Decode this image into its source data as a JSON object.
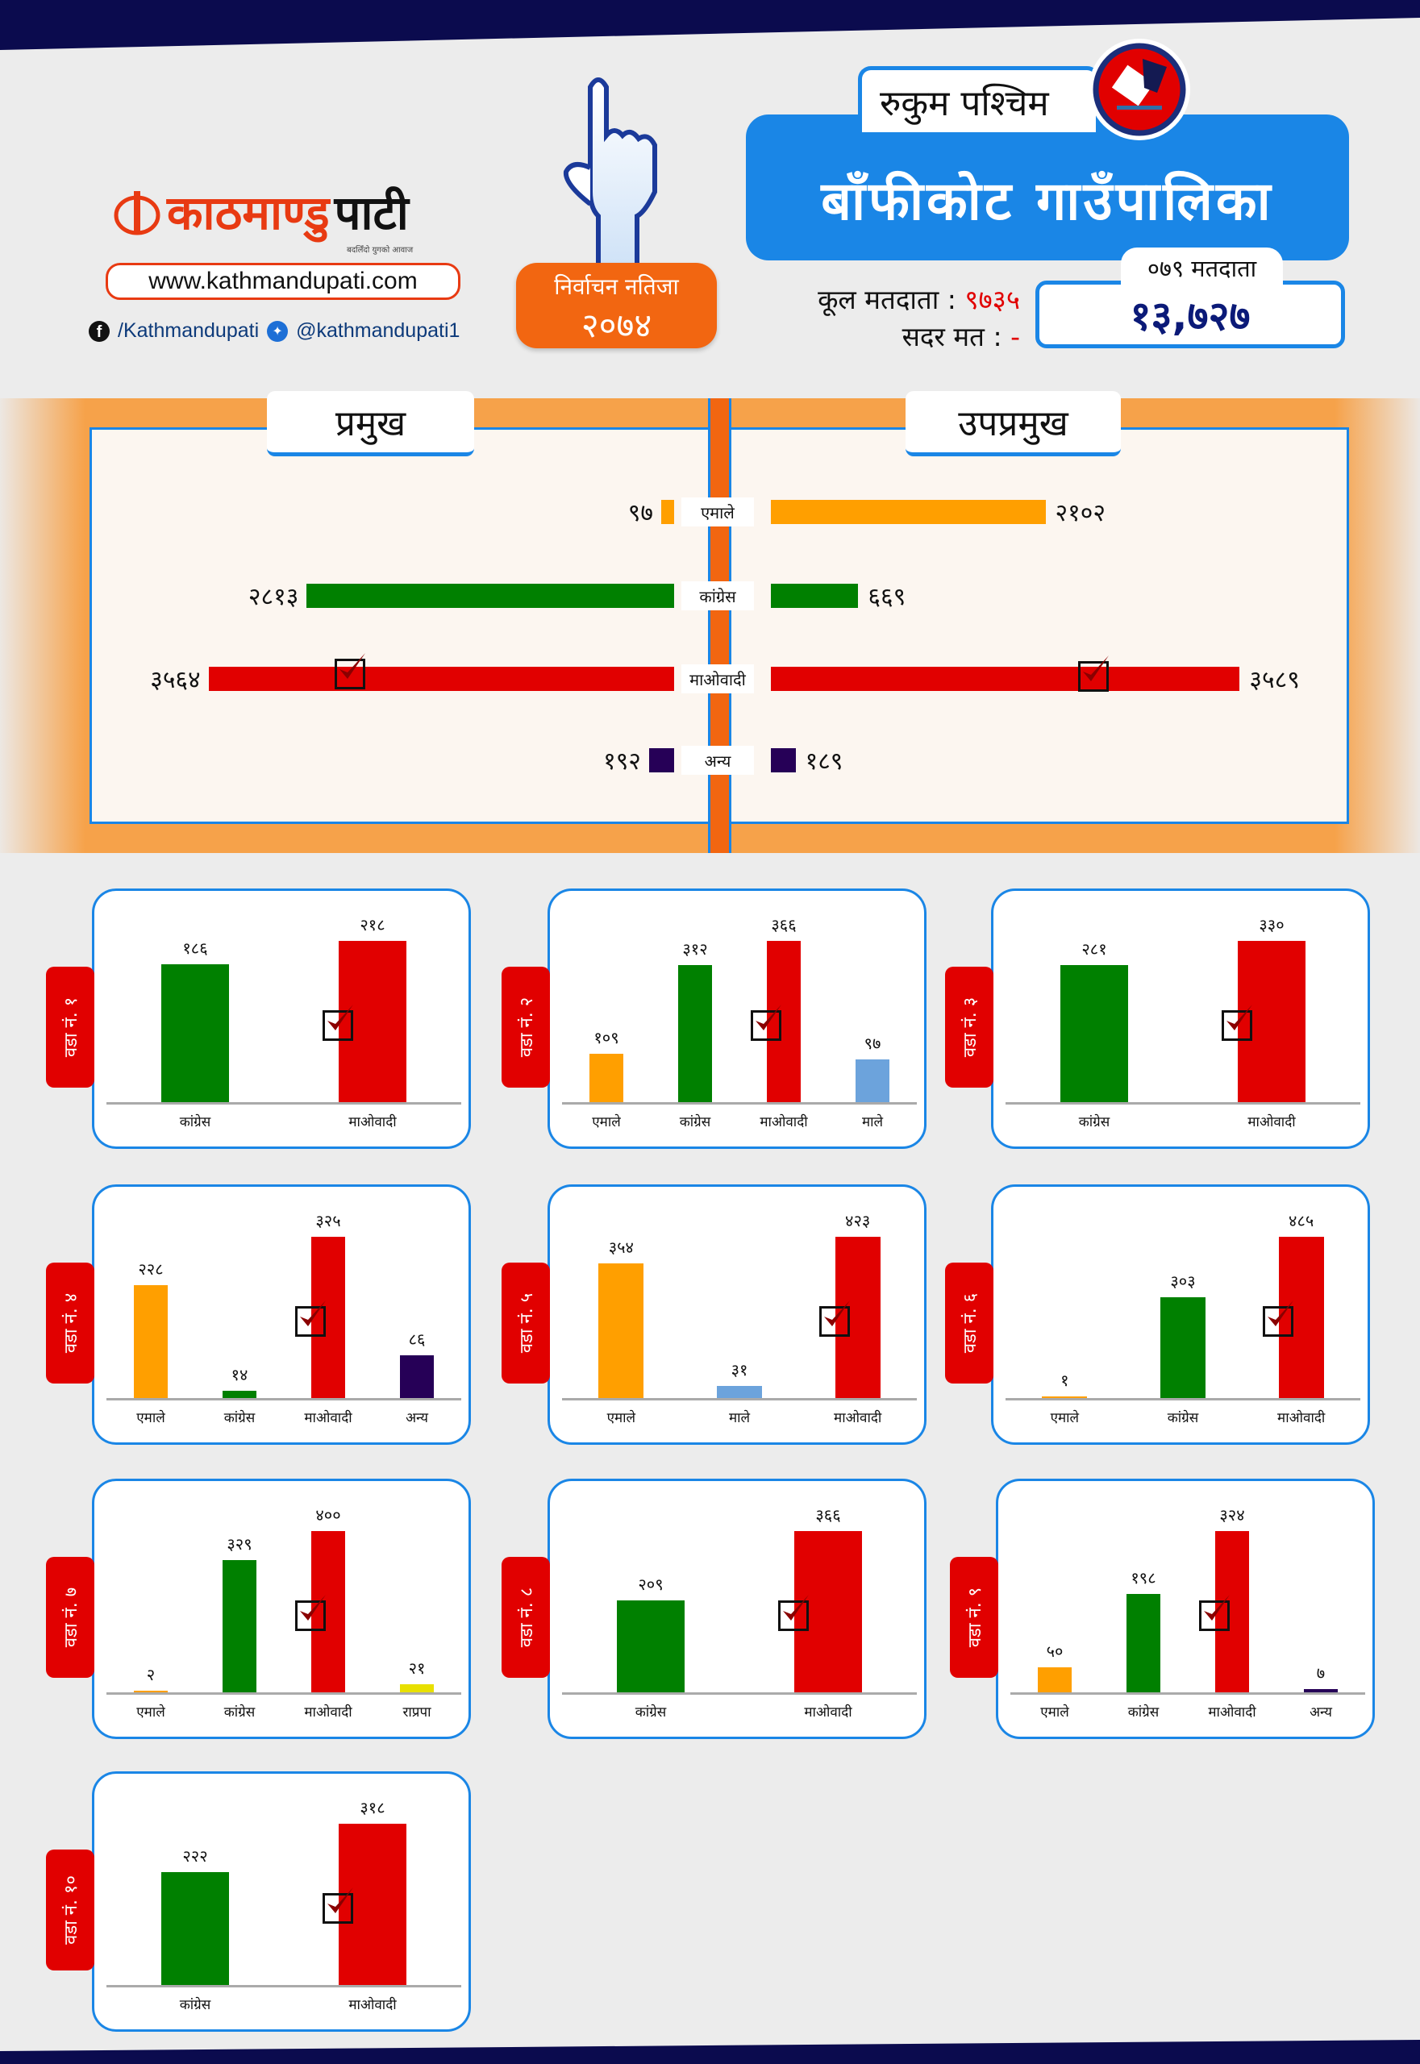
{
  "header": {
    "logo_text_red": "काठमाण्डु",
    "logo_text_black": "पाटी",
    "logo_tagline": "बदलिँदो युगको आवाज",
    "website": "www.kathmandupati.com",
    "facebook": "/Kathmandupati",
    "twitter": "@kathmandupati1",
    "badge_line1": "निर्वाचन नतिजा",
    "badge_line2": "२०७४",
    "district": "रुकुम पश्चिम",
    "municipality": "बाँफीकोट गाउँपालिका",
    "total_voters_label": "कूल मतदाता :",
    "total_voters_value": "९७३५",
    "valid_votes_label": "सदर मत :",
    "valid_votes_value": "-",
    "voters_079_label": "०७९ मतदाता",
    "voters_079_value": "१३,७२७"
  },
  "colors": {
    "एमाले": "#ff9f00",
    "कांग्रेस": "#008000",
    "माओवादी": "#e10000",
    "माले": "#6ca3dc",
    "अन्य": "#260057",
    "राप्रपा": "#e8e000",
    "accent_blue": "#1a86e6",
    "accent_orange": "#f26611"
  },
  "chart_data": [
    {
      "type": "bar",
      "title_left": "प्रमुख",
      "title_right": "उपप्रमुख",
      "categories": [
        "एमाले",
        "कांग्रेस",
        "माओवादी",
        "अन्य"
      ],
      "series": [
        {
          "name": "प्रमुख",
          "values": [
            97,
            2813,
            3564,
            192
          ],
          "winner": "माओवादी"
        },
        {
          "name": "उपप्रमुख",
          "values": [
            2102,
            669,
            3589,
            189
          ],
          "winner": "माओवादी"
        }
      ]
    },
    {
      "type": "bar",
      "title": "वडा नं. १",
      "categories": [
        "कांग्रेस",
        "माओवादी"
      ],
      "values": [
        186,
        218
      ],
      "winner": "माओवादी"
    },
    {
      "type": "bar",
      "title": "वडा नं. २",
      "categories": [
        "एमाले",
        "कांग्रेस",
        "माओवादी",
        "माले"
      ],
      "values": [
        109,
        312,
        366,
        97
      ],
      "winner": "माओवादी"
    },
    {
      "type": "bar",
      "title": "वडा नं. ३",
      "categories": [
        "कांग्रेस",
        "माओवादी"
      ],
      "values": [
        281,
        330
      ],
      "winner": "माओवादी"
    },
    {
      "type": "bar",
      "title": "वडा नं. ४",
      "categories": [
        "एमाले",
        "कांग्रेस",
        "माओवादी",
        "अन्य"
      ],
      "values": [
        228,
        14,
        325,
        86
      ],
      "winner": "माओवादी"
    },
    {
      "type": "bar",
      "title": "वडा नं. ५",
      "categories": [
        "एमाले",
        "माले",
        "माओवादी"
      ],
      "values": [
        354,
        31,
        423
      ],
      "winner": "माओवादी"
    },
    {
      "type": "bar",
      "title": "वडा नं. ६",
      "categories": [
        "एमाले",
        "कांग्रेस",
        "माओवादी"
      ],
      "values": [
        1,
        303,
        485
      ],
      "winner": "माओवादी"
    },
    {
      "type": "bar",
      "title": "वडा नं. ७",
      "categories": [
        "एमाले",
        "कांग्रेस",
        "माओवादी",
        "राप्रपा"
      ],
      "values": [
        2,
        329,
        400,
        21
      ],
      "winner": "माओवादी"
    },
    {
      "type": "bar",
      "title": "वडा नं. ८",
      "categories": [
        "कांग्रेस",
        "माओवादी"
      ],
      "values": [
        209,
        366
      ],
      "winner": "माओवादी"
    },
    {
      "type": "bar",
      "title": "वडा नं. ९",
      "categories": [
        "एमाले",
        "कांग्रेस",
        "माओवादी",
        "अन्य"
      ],
      "values": [
        50,
        198,
        324,
        7
      ],
      "winner": "माओवादी"
    },
    {
      "type": "bar",
      "title": "वडा नं. १०",
      "categories": [
        "कांग्रेस",
        "माओवादी"
      ],
      "values": [
        222,
        318
      ],
      "winner": "माओवादी"
    }
  ]
}
